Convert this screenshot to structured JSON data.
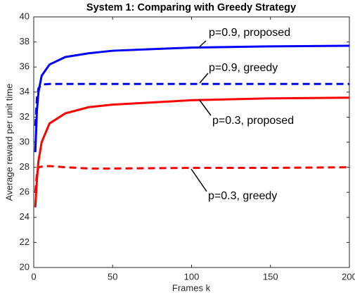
{
  "chart_data": {
    "type": "line",
    "title": "System 1: Comparing with Greedy Strategy",
    "xlabel": "Frames k",
    "ylabel": "Average reward per unit time",
    "xlim": [
      0,
      200
    ],
    "xticks": [
      0,
      50,
      100,
      150,
      200
    ],
    "ylim": [
      20,
      40
    ],
    "yticks": [
      20,
      22,
      24,
      26,
      28,
      30,
      32,
      34,
      36,
      38,
      40
    ],
    "grid": false,
    "x": [
      1,
      2,
      3,
      5,
      10,
      20,
      35,
      50,
      100,
      150,
      200
    ],
    "series": [
      {
        "name": "p=0.9, proposed",
        "color": "#0000ff",
        "dash": false,
        "values": [
          29.2,
          32.5,
          34.0,
          35.3,
          36.2,
          36.8,
          37.1,
          37.3,
          37.55,
          37.65,
          37.7
        ]
      },
      {
        "name": "p=0.9, greedy",
        "color": "#0000ff",
        "dash": true,
        "values": [
          31.3,
          33.5,
          34.3,
          34.6,
          34.65,
          34.65,
          34.65,
          34.65,
          34.65,
          34.65,
          34.65
        ]
      },
      {
        "name": "p=0.3, proposed",
        "color": "#ff0000",
        "dash": false,
        "values": [
          24.8,
          27.0,
          28.5,
          30.0,
          31.5,
          32.3,
          32.8,
          33.0,
          33.35,
          33.5,
          33.55
        ]
      },
      {
        "name": "p=0.3, greedy",
        "color": "#ff0000",
        "dash": true,
        "values": [
          26.0,
          27.5,
          28.0,
          28.05,
          28.1,
          28.0,
          27.9,
          27.9,
          27.95,
          27.95,
          28.0
        ]
      }
    ]
  }
}
